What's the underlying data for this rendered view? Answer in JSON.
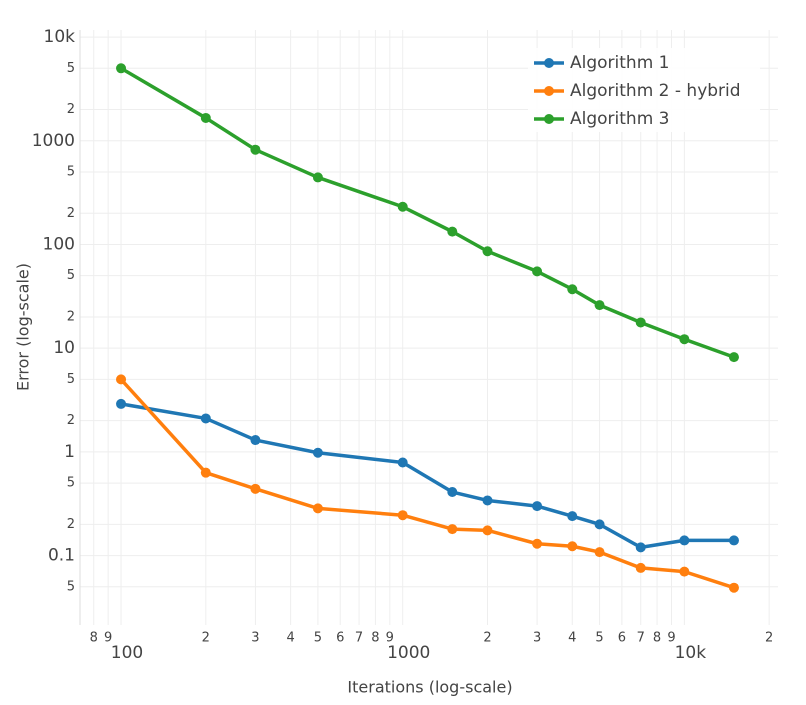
{
  "chart_data": {
    "type": "line",
    "x_label": "Iterations (log-scale)",
    "y_label": "Error (log-scale)",
    "x": [
      100,
      200,
      300,
      500,
      1000,
      1500,
      2000,
      3000,
      4000,
      5000,
      7000,
      10000,
      15000
    ],
    "series": [
      {
        "name": "Algorithm 1",
        "color": "#1f77b4",
        "values": [
          2.9,
          2.1,
          1.3,
          0.98,
          0.79,
          0.41,
          0.34,
          0.3,
          0.24,
          0.2,
          0.12,
          0.14,
          0.14
        ]
      },
      {
        "name": "Algorithm 2 - hybrid",
        "color": "#ff7f0e",
        "values": [
          5.0,
          0.63,
          0.44,
          0.285,
          0.245,
          0.18,
          0.175,
          0.13,
          0.123,
          0.108,
          0.076,
          0.07,
          0.049
        ]
      },
      {
        "name": "Algorithm 3",
        "color": "#2ca02c",
        "values": [
          5000,
          1660,
          820,
          443,
          231,
          133,
          86,
          55,
          37,
          26,
          17.7,
          12.2,
          8.2
        ]
      }
    ],
    "xlog": true,
    "ylog": true,
    "xlim": [
      71.5,
      21500
    ],
    "ylim": [
      0.0214,
      11700
    ],
    "xticks": [
      {
        "value": 80,
        "label": "8"
      },
      {
        "value": 90,
        "label": "9"
      },
      100,
      {
        "value": 200,
        "label": "2"
      },
      {
        "value": 300,
        "label": "3"
      },
      {
        "value": 400,
        "label": "4"
      },
      {
        "value": 500,
        "label": "5"
      },
      {
        "value": 600,
        "label": "6"
      },
      {
        "value": 700,
        "label": "7"
      },
      {
        "value": 800,
        "label": "8"
      },
      {
        "value": 900,
        "label": "9"
      },
      1000,
      {
        "value": 2000,
        "label": "2"
      },
      {
        "value": 3000,
        "label": "3"
      },
      {
        "value": 4000,
        "label": "4"
      },
      {
        "value": 5000,
        "label": "5"
      },
      {
        "value": 6000,
        "label": "6"
      },
      {
        "value": 7000,
        "label": "7"
      },
      {
        "value": 8000,
        "label": "8"
      },
      {
        "value": 9000,
        "label": "9"
      },
      {
        "value": 10000,
        "label": "10k"
      },
      {
        "value": 20000,
        "label": "2"
      }
    ],
    "yticks": [
      {
        "value": 0.05,
        "label": "5"
      },
      0.1,
      {
        "value": 0.2,
        "label": "2"
      },
      {
        "value": 0.5,
        "label": "5"
      },
      1,
      2,
      5,
      10,
      {
        "value": 20,
        "label": "2"
      },
      {
        "value": 50,
        "label": "5"
      },
      100,
      {
        "value": 200,
        "label": "2"
      },
      {
        "value": 500,
        "label": "5"
      },
      1000,
      {
        "value": 2000,
        "label": "2"
      },
      {
        "value": 5000,
        "label": "5"
      },
      {
        "value": 10000,
        "label": "10k"
      }
    ],
    "grid": true,
    "legend": "top-right"
  }
}
